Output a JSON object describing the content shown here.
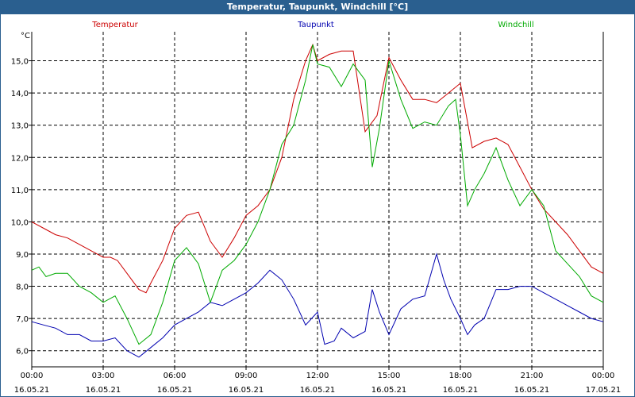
{
  "window_title": "Temperatur, Taupunkt, Windchill [°C]",
  "chart_data": {
    "type": "line",
    "title": "Temperatur, Taupunkt, Windchill [°C]",
    "ylabel": "°C",
    "ylim": [
      5.5,
      15.9
    ],
    "yticks": [
      "6,0",
      "7,0",
      "8,0",
      "9,0",
      "10,0",
      "11,0",
      "12,0",
      "13,0",
      "14,0",
      "15,0"
    ],
    "ytick_values": [
      6,
      7,
      8,
      9,
      10,
      11,
      12,
      13,
      14,
      15
    ],
    "xlim_hours": [
      0,
      24
    ],
    "x_ticks": [
      {
        "time": "00:00",
        "date": "16.05.21"
      },
      {
        "time": "03:00",
        "date": "16.05.21"
      },
      {
        "time": "06:00",
        "date": "16.05.21"
      },
      {
        "time": "09:00",
        "date": "16.05.21"
      },
      {
        "time": "12:00",
        "date": "16.05.21"
      },
      {
        "time": "15:00",
        "date": "16.05.21"
      },
      {
        "time": "18:00",
        "date": "16.05.21"
      },
      {
        "time": "21:00",
        "date": "16.05.21"
      },
      {
        "time": "00:00",
        "date": "17.05.21"
      }
    ],
    "grid": true,
    "series": [
      {
        "name": "Temperatur",
        "color": "#cc0000",
        "x": [
          0,
          0.5,
          1,
          1.5,
          2,
          2.5,
          3,
          3.3,
          3.6,
          4,
          4.5,
          4.8,
          5,
          5.5,
          6,
          6.5,
          7,
          7.5,
          8,
          8.5,
          9,
          9.5,
          10,
          10.5,
          11,
          11.5,
          11.8,
          12,
          12.5,
          13,
          13.5,
          14,
          14.5,
          15,
          15.5,
          16,
          16.5,
          17,
          17.5,
          18,
          18.5,
          19,
          19.5,
          20,
          20.5,
          21,
          21.5,
          22,
          22.5,
          23,
          23.5,
          24
        ],
        "values": [
          10.0,
          9.8,
          9.6,
          9.5,
          9.3,
          9.1,
          8.9,
          8.9,
          8.8,
          8.4,
          7.9,
          7.8,
          8.1,
          8.8,
          9.8,
          10.2,
          10.3,
          9.4,
          8.9,
          9.5,
          10.2,
          10.5,
          11.0,
          12.0,
          13.8,
          15.0,
          15.5,
          15.0,
          15.2,
          15.3,
          15.3,
          12.8,
          13.3,
          15.1,
          14.4,
          13.8,
          13.8,
          13.7,
          14.0,
          14.3,
          12.3,
          12.5,
          12.6,
          12.4,
          11.7,
          11.0,
          10.4,
          10.0,
          9.6,
          9.1,
          8.6,
          8.4
        ]
      },
      {
        "name": "Taupunkt",
        "color": "#0000b0",
        "x": [
          0,
          0.5,
          1,
          1.5,
          2,
          2.5,
          3,
          3.5,
          4,
          4.5,
          5,
          5.5,
          6,
          6.5,
          7,
          7.5,
          8,
          8.5,
          9,
          9.5,
          10,
          10.5,
          11,
          11.5,
          12,
          12.3,
          12.7,
          13,
          13.5,
          14,
          14.3,
          14.6,
          15,
          15.5,
          16,
          16.5,
          17,
          17.3,
          17.6,
          18,
          18.3,
          18.6,
          19,
          19.5,
          20,
          20.5,
          21,
          21.5,
          22,
          22.5,
          23,
          23.5,
          24
        ],
        "values": [
          6.9,
          6.8,
          6.7,
          6.5,
          6.5,
          6.3,
          6.3,
          6.4,
          6.0,
          5.8,
          6.1,
          6.4,
          6.8,
          7.0,
          7.2,
          7.5,
          7.4,
          7.6,
          7.8,
          8.1,
          8.5,
          8.2,
          7.6,
          6.8,
          7.2,
          6.2,
          6.3,
          6.7,
          6.4,
          6.6,
          7.9,
          7.2,
          6.5,
          7.3,
          7.6,
          7.7,
          9.0,
          8.2,
          7.6,
          7.0,
          6.5,
          6.8,
          7.0,
          7.9,
          7.9,
          8.0,
          8.0,
          7.8,
          7.6,
          7.4,
          7.2,
          7.0,
          6.9
        ]
      },
      {
        "name": "Windchill",
        "color": "#00aa00",
        "x": [
          0,
          0.3,
          0.6,
          1,
          1.5,
          2,
          2.5,
          3,
          3.5,
          4,
          4.5,
          5,
          5.5,
          6,
          6.5,
          7,
          7.5,
          8,
          8.5,
          9,
          9.5,
          10,
          10.5,
          11,
          11.5,
          11.8,
          12,
          12.5,
          13,
          13.5,
          14,
          14.3,
          14.6,
          15,
          15.5,
          16,
          16.5,
          17,
          17.5,
          17.8,
          18,
          18.3,
          18.6,
          19,
          19.5,
          20,
          20.5,
          21,
          21.5,
          22,
          22.5,
          23,
          23.5,
          24
        ],
        "values": [
          8.5,
          8.6,
          8.3,
          8.4,
          8.4,
          8.0,
          7.8,
          7.5,
          7.7,
          7.0,
          6.2,
          6.5,
          7.5,
          8.8,
          9.2,
          8.7,
          7.5,
          8.5,
          8.8,
          9.3,
          10.0,
          11.0,
          12.4,
          13.0,
          14.4,
          15.5,
          14.9,
          14.8,
          14.2,
          14.9,
          14.4,
          11.7,
          12.9,
          15.0,
          13.8,
          12.9,
          13.1,
          13.0,
          13.6,
          13.8,
          12.7,
          10.5,
          11.0,
          11.5,
          12.3,
          11.3,
          10.5,
          11.0,
          10.5,
          9.1,
          8.7,
          8.3,
          7.7,
          7.5
        ]
      }
    ]
  }
}
